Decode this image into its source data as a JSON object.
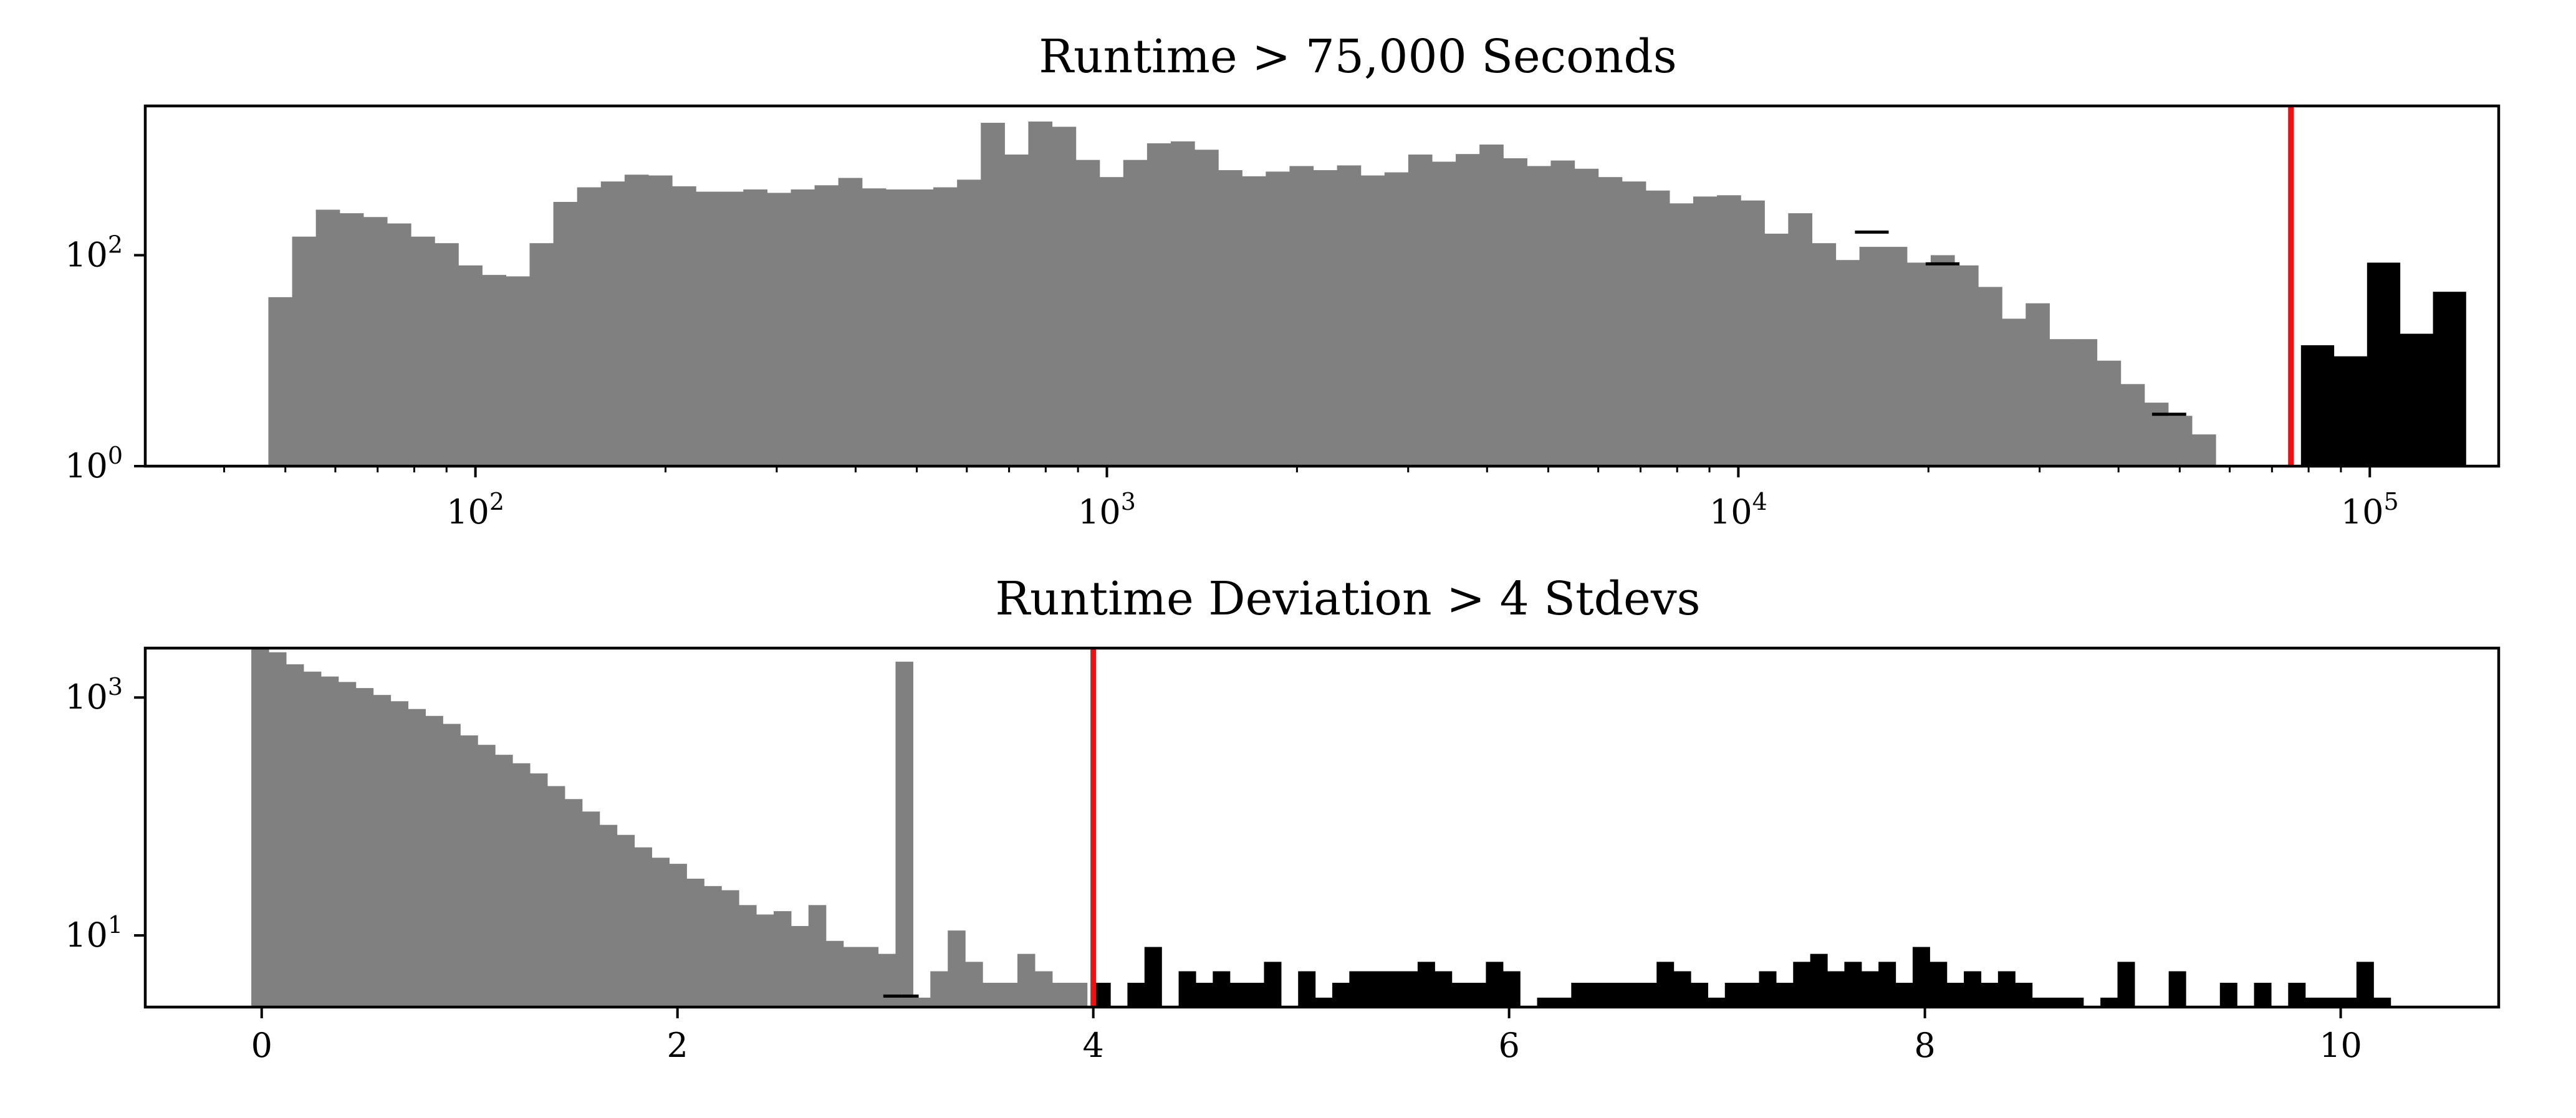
{
  "figure": {
    "colors": {
      "below": "#808080",
      "above": "#000000",
      "threshold": "#ee1111"
    }
  },
  "chart_data": [
    {
      "type": "bar",
      "title": "Runtime > 75,000 Seconds",
      "xlabel": "",
      "ylabel": "",
      "x_scale": "log",
      "y_scale": "log",
      "xlim": [
        30,
        160000
      ],
      "ylim": [
        1,
        2600
      ],
      "grid": false,
      "legend": "none",
      "threshold": 75000,
      "x_ticks": [
        {
          "value": 100,
          "base": "10",
          "exp": "2"
        },
        {
          "value": 1000,
          "base": "10",
          "exp": "3"
        },
        {
          "value": 10000,
          "base": "10",
          "exp": "4"
        },
        {
          "value": 100000,
          "base": "10",
          "exp": "5"
        }
      ],
      "y_ticks": [
        {
          "value": 1,
          "base": "10",
          "exp": "0"
        },
        {
          "value": 100,
          "base": "10",
          "exp": "2"
        }
      ],
      "bin_range": [
        47,
        57000
      ],
      "series": [
        {
          "name": "below threshold",
          "color": "#808080",
          "values": [
            40,
            150,
            270,
            250,
            230,
            200,
            150,
            130,
            80,
            65,
            63,
            130,
            320,
            440,
            500,
            580,
            570,
            450,
            400,
            400,
            420,
            390,
            420,
            460,
            540,
            430,
            420,
            420,
            440,
            520,
            1800,
            900,
            1850,
            1650,
            800,
            550,
            800,
            1150,
            1200,
            1000,
            640,
            560,
            620,
            700,
            640,
            710,
            570,
            610,
            900,
            770,
            910,
            1120,
            830,
            700,
            790,
            660,
            550,
            500,
            410,
            310,
            360,
            370,
            330,
            160,
            250,
            130,
            90,
            120,
            120,
            85,
            100,
            80,
            50,
            25,
            35,
            16,
            16,
            10,
            6,
            4,
            3,
            2
          ]
        }
      ],
      "overlay_bins": [
        {
          "value": 160,
          "x_range": [
            15300,
            17300
          ]
        },
        {
          "value": 80,
          "x_range": [
            19800,
            22400
          ]
        },
        {
          "value": 3,
          "x_range": [
            45200,
            51200
          ]
        }
      ],
      "above_bins": [
        {
          "x_range": [
            77800,
            87700
          ],
          "value": 14
        },
        {
          "x_range": [
            87700,
            99000
          ],
          "value": 11
        },
        {
          "x_range": [
            99000,
            111600
          ],
          "value": 85
        },
        {
          "x_range": [
            111600,
            125900
          ],
          "value": 18
        },
        {
          "x_range": [
            125900,
            141900
          ],
          "value": 45
        }
      ]
    },
    {
      "type": "bar",
      "title": "Runtime Deviation > 4 Stdevs",
      "xlabel": "",
      "ylabel": "",
      "x_scale": "linear",
      "y_scale": "log",
      "xlim": [
        -0.56,
        10.76
      ],
      "ylim": [
        2.5,
        2600
      ],
      "grid": false,
      "legend": "none",
      "threshold": 4,
      "x_ticks": [
        {
          "value": 0,
          "label": "0"
        },
        {
          "value": 2,
          "label": "2"
        },
        {
          "value": 4,
          "label": "4"
        },
        {
          "value": 6,
          "label": "6"
        },
        {
          "value": 8,
          "label": "8"
        },
        {
          "value": 10,
          "label": "10"
        }
      ],
      "y_ticks": [
        {
          "value": 1000,
          "base": "10",
          "exp": "3"
        },
        {
          "value": 10,
          "base": "10",
          "exp": "1"
        }
      ],
      "bin_range": [
        -0.05,
        3.97
      ],
      "series": [
        {
          "name": "below threshold",
          "color": "#808080",
          "values": [
            3000,
            2400,
            1900,
            1650,
            1500,
            1350,
            1200,
            1050,
            930,
            800,
            700,
            600,
            480,
            400,
            330,
            280,
            230,
            180,
            140,
            110,
            85,
            70,
            55,
            45,
            40,
            30,
            26,
            24,
            18,
            15,
            16,
            12,
            18,
            9,
            8,
            8,
            7,
            2000,
            3,
            5,
            11,
            6,
            4,
            4,
            7,
            5,
            4,
            4
          ]
        }
      ],
      "overlay_bins": [
        {
          "value": 3,
          "x_range": [
            2.99,
            3.08
          ]
        },
        {
          "value": 3,
          "x_range": [
            3.08,
            3.16
          ]
        }
      ],
      "above_bins_x": [
        4.0,
        10.24
      ],
      "above_values": [
        4,
        2,
        4,
        8,
        2,
        5,
        4,
        5,
        4,
        4,
        6,
        2,
        5,
        3,
        4,
        5,
        5,
        5,
        5,
        6,
        5,
        4,
        4,
        6,
        5,
        2,
        3,
        3,
        4,
        4,
        4,
        4,
        4,
        6,
        5,
        4,
        3,
        4,
        4,
        5,
        4,
        6,
        7,
        5,
        6,
        5,
        6,
        4,
        8,
        6,
        4,
        5,
        4,
        5,
        4,
        3,
        3,
        3,
        2,
        3,
        6,
        2,
        2,
        5,
        2,
        2,
        4,
        2,
        4,
        2,
        4,
        3,
        3,
        3,
        6,
        3
      ]
    }
  ]
}
